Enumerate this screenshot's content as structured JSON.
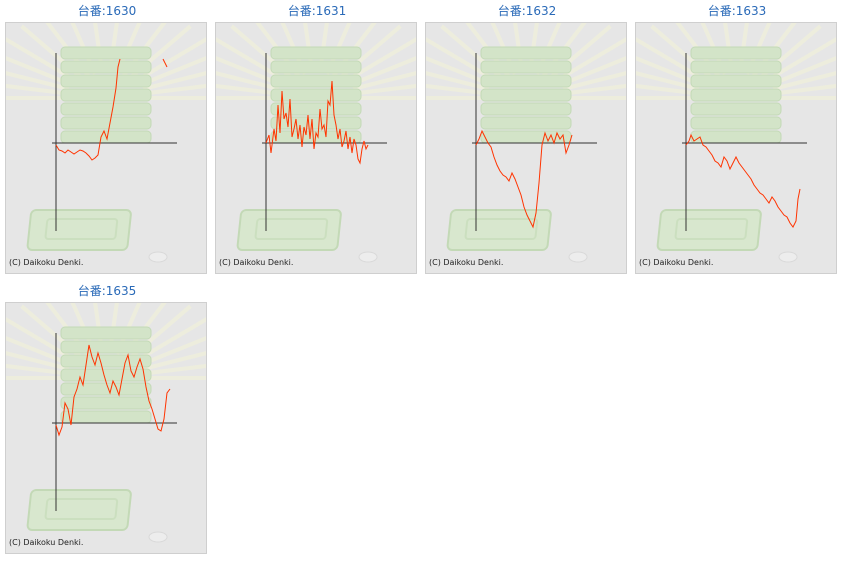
{
  "machines": [
    {
      "title": "台番:1630",
      "copyright": "(C) Daikoku Denki.",
      "series": [
        [
          0,
          -2
        ],
        [
          3,
          -7
        ],
        [
          6,
          -8
        ],
        [
          9,
          -10
        ],
        [
          12,
          -7
        ],
        [
          15,
          -9
        ],
        [
          18,
          -11
        ],
        [
          21,
          -9
        ],
        [
          24,
          -7
        ],
        [
          27,
          -8
        ],
        [
          30,
          -10
        ],
        [
          33,
          -13
        ],
        [
          36,
          -17
        ],
        [
          39,
          -15
        ],
        [
          42,
          -12
        ],
        [
          45,
          6
        ],
        [
          48,
          12
        ],
        [
          51,
          4
        ],
        [
          54,
          20
        ],
        [
          57,
          36
        ],
        [
          60,
          55
        ],
        [
          62,
          76
        ],
        [
          64,
          84
        ],
        [
          107,
          84
        ],
        [
          109,
          80
        ],
        [
          111,
          76
        ]
      ]
    },
    {
      "title": "台番:1631",
      "copyright": "(C) Daikoku Denki.",
      "series": [
        [
          0,
          0
        ],
        [
          3,
          8
        ],
        [
          5,
          -10
        ],
        [
          8,
          14
        ],
        [
          10,
          2
        ],
        [
          12,
          38
        ],
        [
          14,
          10
        ],
        [
          16,
          52
        ],
        [
          18,
          24
        ],
        [
          20,
          30
        ],
        [
          22,
          16
        ],
        [
          24,
          44
        ],
        [
          26,
          6
        ],
        [
          28,
          14
        ],
        [
          30,
          24
        ],
        [
          32,
          4
        ],
        [
          34,
          18
        ],
        [
          36,
          -4
        ],
        [
          38,
          16
        ],
        [
          40,
          8
        ],
        [
          42,
          28
        ],
        [
          44,
          4
        ],
        [
          46,
          24
        ],
        [
          48,
          -6
        ],
        [
          50,
          10
        ],
        [
          52,
          6
        ],
        [
          54,
          34
        ],
        [
          56,
          14
        ],
        [
          58,
          18
        ],
        [
          60,
          6
        ],
        [
          62,
          42
        ],
        [
          64,
          38
        ],
        [
          66,
          62
        ],
        [
          68,
          28
        ],
        [
          70,
          18
        ],
        [
          72,
          4
        ],
        [
          74,
          14
        ],
        [
          76,
          -4
        ],
        [
          78,
          2
        ],
        [
          80,
          12
        ],
        [
          82,
          -6
        ],
        [
          84,
          6
        ],
        [
          86,
          -10
        ],
        [
          88,
          4
        ],
        [
          90,
          -2
        ],
        [
          92,
          -16
        ],
        [
          94,
          -20
        ],
        [
          96,
          -6
        ],
        [
          98,
          2
        ],
        [
          100,
          -6
        ],
        [
          102,
          -2
        ]
      ]
    },
    {
      "title": "台番:1632",
      "copyright": "(C) Daikoku Denki.",
      "series": [
        [
          0,
          -2
        ],
        [
          3,
          4
        ],
        [
          6,
          12
        ],
        [
          9,
          6
        ],
        [
          12,
          0
        ],
        [
          15,
          -4
        ],
        [
          18,
          -14
        ],
        [
          21,
          -22
        ],
        [
          24,
          -28
        ],
        [
          27,
          -32
        ],
        [
          30,
          -34
        ],
        [
          33,
          -38
        ],
        [
          36,
          -30
        ],
        [
          39,
          -36
        ],
        [
          42,
          -44
        ],
        [
          45,
          -52
        ],
        [
          48,
          -64
        ],
        [
          51,
          -72
        ],
        [
          54,
          -78
        ],
        [
          57,
          -84
        ],
        [
          60,
          -70
        ],
        [
          63,
          -40
        ],
        [
          66,
          -2
        ],
        [
          69,
          10
        ],
        [
          72,
          2
        ],
        [
          75,
          8
        ],
        [
          78,
          0
        ],
        [
          81,
          10
        ],
        [
          84,
          4
        ],
        [
          87,
          8
        ],
        [
          90,
          -10
        ],
        [
          93,
          -2
        ],
        [
          96,
          8
        ]
      ]
    },
    {
      "title": "台番:1633",
      "copyright": "(C) Daikoku Denki.",
      "series": [
        [
          0,
          -2
        ],
        [
          3,
          2
        ],
        [
          5,
          8
        ],
        [
          8,
          2
        ],
        [
          11,
          4
        ],
        [
          14,
          6
        ],
        [
          17,
          -2
        ],
        [
          20,
          -4
        ],
        [
          23,
          -8
        ],
        [
          26,
          -12
        ],
        [
          29,
          -18
        ],
        [
          32,
          -20
        ],
        [
          35,
          -24
        ],
        [
          38,
          -14
        ],
        [
          41,
          -18
        ],
        [
          44,
          -26
        ],
        [
          47,
          -20
        ],
        [
          50,
          -14
        ],
        [
          53,
          -20
        ],
        [
          56,
          -24
        ],
        [
          59,
          -28
        ],
        [
          62,
          -32
        ],
        [
          65,
          -36
        ],
        [
          68,
          -42
        ],
        [
          71,
          -46
        ],
        [
          74,
          -50
        ],
        [
          77,
          -52
        ],
        [
          80,
          -56
        ],
        [
          83,
          -60
        ],
        [
          86,
          -54
        ],
        [
          89,
          -58
        ],
        [
          92,
          -64
        ],
        [
          95,
          -68
        ],
        [
          98,
          -72
        ],
        [
          101,
          -74
        ],
        [
          104,
          -80
        ],
        [
          107,
          -84
        ],
        [
          110,
          -78
        ],
        [
          112,
          -56
        ],
        [
          114,
          -46
        ]
      ]
    },
    {
      "title": "台番:1635",
      "copyright": "(C) Daikoku Denki.",
      "series": [
        [
          0,
          -2
        ],
        [
          3,
          -12
        ],
        [
          6,
          -4
        ],
        [
          9,
          20
        ],
        [
          12,
          14
        ],
        [
          15,
          -2
        ],
        [
          18,
          26
        ],
        [
          21,
          34
        ],
        [
          24,
          46
        ],
        [
          27,
          38
        ],
        [
          30,
          58
        ],
        [
          33,
          78
        ],
        [
          36,
          66
        ],
        [
          39,
          58
        ],
        [
          42,
          70
        ],
        [
          45,
          60
        ],
        [
          48,
          48
        ],
        [
          51,
          38
        ],
        [
          54,
          30
        ],
        [
          57,
          42
        ],
        [
          60,
          36
        ],
        [
          63,
          28
        ],
        [
          66,
          44
        ],
        [
          69,
          60
        ],
        [
          72,
          68
        ],
        [
          75,
          52
        ],
        [
          78,
          46
        ],
        [
          81,
          56
        ],
        [
          84,
          64
        ],
        [
          87,
          54
        ],
        [
          90,
          36
        ],
        [
          93,
          22
        ],
        [
          96,
          14
        ],
        [
          99,
          4
        ],
        [
          102,
          -6
        ],
        [
          105,
          -8
        ],
        [
          108,
          4
        ],
        [
          111,
          30
        ],
        [
          114,
          34
        ]
      ]
    }
  ]
}
